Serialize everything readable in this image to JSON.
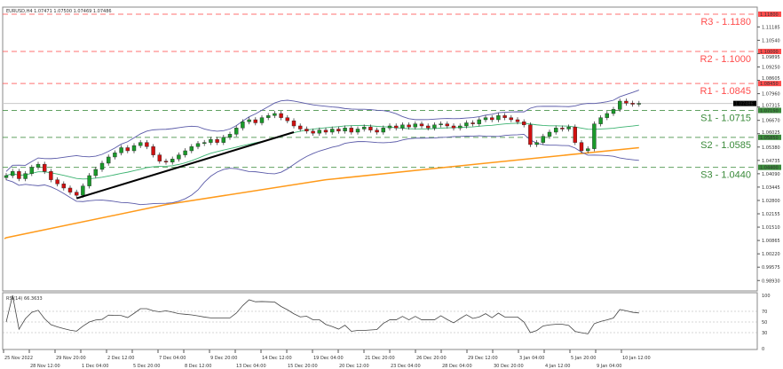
{
  "header": {
    "symbol_info": "EURUSD,H4  1.07471 1.07500 1.07469 1.07486"
  },
  "rsi_panel": {
    "label": "RSI(14) 66.3633"
  },
  "colors": {
    "resistance": "#ff4d4d",
    "support": "#3a8a3a",
    "bull": "#1a9a2a",
    "bear": "#d01010",
    "sma": "#ff9a1a",
    "bollinger": "#5a5aa8",
    "bollinger_mid": "#3cb371",
    "trendline": "#000000",
    "current_price_tag": "#000000"
  },
  "chart_data": {
    "type": "candlestick",
    "title": "EURUSD,H4",
    "ylim": [
      0.9843,
      1.1214
    ],
    "grid": false,
    "current_price": 1.07486,
    "levels": [
      {
        "label": "R3 - 1.1180",
        "value": 1.118,
        "tag": "1.11800",
        "kind": "resistance"
      },
      {
        "label": "R2 - 1.1000",
        "value": 1.1,
        "tag": "1.10000",
        "kind": "resistance"
      },
      {
        "label": "R1 - 1.0845",
        "value": 1.0845,
        "tag": "1.08450",
        "kind": "resistance"
      },
      {
        "label": "S1 - 1.0715",
        "value": 1.0715,
        "tag": "1.07150",
        "kind": "support"
      },
      {
        "label": "S2 - 1.0585",
        "value": 1.0585,
        "tag": "1.05850",
        "kind": "support"
      },
      {
        "label": "S3 - 1.0440",
        "value": 1.044,
        "tag": "1.04400",
        "kind": "support"
      }
    ],
    "y_ticks": [
      "1.11185",
      "1.10540",
      "1.09895",
      "1.09250",
      "1.08605",
      "1.07960",
      "1.07315",
      "1.06670",
      "1.06025",
      "1.05380",
      "1.04735",
      "1.04090",
      "1.03445",
      "1.02800",
      "1.02155",
      "1.01510",
      "1.00865",
      "1.00220",
      "0.99575",
      "0.98930"
    ],
    "x_ticks": [
      "25 Nov 2022",
      "28 Nov 12:00",
      "29 Nov 20:00",
      "1 Dec 04:00",
      "2 Dec 12:00",
      "5 Dec 20:00",
      "7 Dec 04:00",
      "8 Dec 12:00",
      "9 Dec 20:00",
      "13 Dec 04:00",
      "14 Dec 12:00",
      "15 Dec 20:00",
      "19 Dec 04:00",
      "20 Dec 12:00",
      "21 Dec 20:00",
      "23 Dec 04:00",
      "26 Dec 20:00",
      "28 Dec 04:00",
      "29 Dec 12:00",
      "30 Dec 20:00",
      "3 Jan 04:00",
      "4 Jan 12:00",
      "5 Jan 20:00",
      "9 Jan 04:00",
      "10 Jan 12:00"
    ],
    "closes": [
      1.04,
      1.042,
      1.0385,
      1.041,
      1.044,
      1.0455,
      1.042,
      1.038,
      1.036,
      1.034,
      1.032,
      1.0305,
      1.035,
      1.04,
      1.043,
      1.046,
      1.049,
      1.051,
      1.0535,
      1.052,
      1.0545,
      1.056,
      1.054,
      1.05,
      1.047,
      1.0465,
      1.048,
      1.05,
      1.052,
      1.054,
      1.0555,
      1.056,
      1.0575,
      1.056,
      1.0585,
      1.06,
      1.063,
      1.066,
      1.067,
      1.0655,
      1.068,
      1.069,
      1.07,
      1.068,
      1.0665,
      1.064,
      1.0625,
      1.0615,
      1.0605,
      1.062,
      1.061,
      1.0625,
      1.0615,
      1.063,
      1.061,
      1.0625,
      1.0635,
      1.062,
      1.061,
      1.063,
      1.064,
      1.063,
      1.0645,
      1.0635,
      1.065,
      1.064,
      1.063,
      1.0645,
      1.065,
      1.064,
      1.063,
      1.064,
      1.0655,
      1.065,
      1.067,
      1.068,
      1.067,
      1.069,
      1.068,
      1.067,
      1.066,
      1.0645,
      1.055,
      1.056,
      1.059,
      1.061,
      1.063,
      1.0625,
      1.0635,
      1.056,
      1.052,
      1.053,
      1.065,
      1.068,
      1.07,
      1.072,
      1.076,
      1.075,
      1.0745,
      1.0749
    ],
    "sma": [
      [
        0,
        1.01
      ],
      [
        25,
        1.026
      ],
      [
        50,
        1.038
      ],
      [
        75,
        1.046
      ],
      [
        99,
        1.0535
      ]
    ],
    "trendline": [
      [
        11,
        1.029
      ],
      [
        45,
        1.061
      ]
    ],
    "rsi": {
      "label": "RSI(14)",
      "levels": [
        70,
        50,
        30
      ],
      "y_ticks": [
        "100",
        "70",
        "50",
        "30",
        "0"
      ],
      "last": 66.3633
    }
  }
}
